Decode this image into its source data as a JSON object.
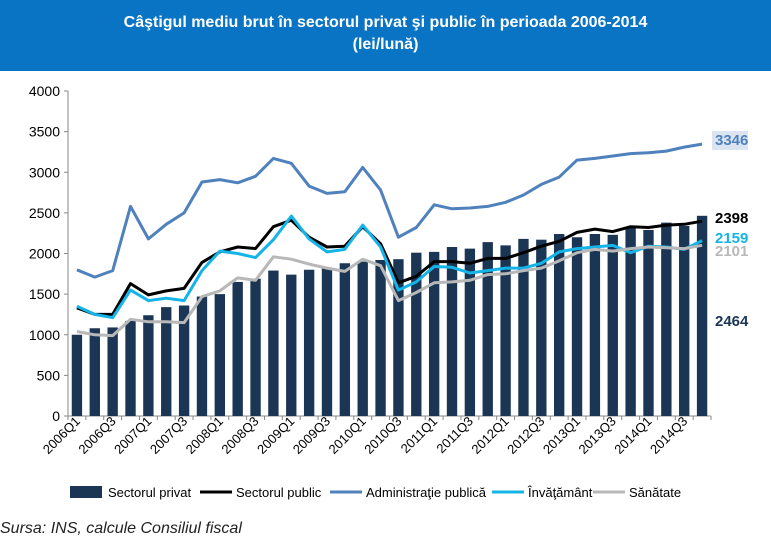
{
  "title_line1": "Câştigul mediu brut în sectorul privat şi public în perioada 2006-2014",
  "title_line2": "(lei/lună)",
  "source": "Sursa: INS, calcule Consiliul fiscal",
  "colors": {
    "header_bg": "#0a74c4",
    "sectorul_privat": "#1b3555",
    "sectorul_public": "#000000",
    "administratie_publica": "#4f81bd",
    "invatamant": "#14b4e8",
    "sanatate": "#b8b8b8"
  },
  "chart_data": {
    "type": "bar",
    "ylim": [
      0,
      4000
    ],
    "yticks": [
      "0",
      "500",
      "1000",
      "1500",
      "2000",
      "2500",
      "3000",
      "3500",
      "4000"
    ],
    "grid": false,
    "legend_position": "bottom",
    "categories": [
      "2006Q1",
      "2006Q2",
      "2006Q3",
      "2006Q4",
      "2007Q1",
      "2007Q2",
      "2007Q3",
      "2007Q4",
      "2008Q1",
      "2008Q2",
      "2008Q3",
      "2008Q4",
      "2009Q1",
      "2009Q2",
      "2009Q3",
      "2009Q4",
      "2010Q1",
      "2010Q2",
      "2010Q3",
      "2010Q4",
      "2011Q1",
      "2011Q2",
      "2011Q3",
      "2011Q4",
      "2012Q1",
      "2012Q2",
      "2012Q3",
      "2012Q4",
      "2013Q1",
      "2013Q2",
      "2013Q3",
      "2013Q4",
      "2014Q1",
      "2014Q2",
      "2014Q3",
      "2014Q4"
    ],
    "xtick_labels": [
      "2006Q1",
      "",
      "2006Q3",
      "",
      "2007Q1",
      "",
      "2007Q3",
      "",
      "2008Q1",
      "",
      "2008Q3",
      "",
      "2009Q1",
      "",
      "2009Q3",
      "",
      "2010Q1",
      "",
      "2010Q3",
      "",
      "2011Q1",
      "",
      "2011Q3",
      "",
      "2012Q1",
      "",
      "2012Q3",
      "",
      "2013Q1",
      "",
      "2013Q3",
      "",
      "2014Q1",
      "",
      "2014Q3",
      ""
    ],
    "series": [
      {
        "name": "Sectorul privat",
        "type": "bar",
        "color": "#1b3555",
        "values": [
          1000,
          1080,
          1090,
          1170,
          1240,
          1340,
          1360,
          1470,
          1500,
          1650,
          1690,
          1790,
          1740,
          1800,
          1820,
          1880,
          1900,
          1920,
          1930,
          2010,
          2020,
          2080,
          2060,
          2140,
          2100,
          2180,
          2170,
          2240,
          2200,
          2240,
          2230,
          2320,
          2290,
          2380,
          2340,
          2464
        ]
      },
      {
        "name": "Sectorul public",
        "type": "line",
        "color": "#000000",
        "values": [
          1330,
          1250,
          1250,
          1630,
          1490,
          1540,
          1570,
          1890,
          2020,
          2080,
          2060,
          2330,
          2410,
          2200,
          2080,
          2090,
          2330,
          2120,
          1640,
          1720,
          1900,
          1900,
          1880,
          1940,
          1940,
          2010,
          2090,
          2150,
          2260,
          2300,
          2270,
          2330,
          2320,
          2350,
          2360,
          2398
        ]
      },
      {
        "name": "Administraţie publică",
        "type": "line",
        "color": "#4f81bd",
        "values": [
          1800,
          1710,
          1790,
          2580,
          2180,
          2360,
          2500,
          2880,
          2910,
          2870,
          2950,
          3170,
          3110,
          2830,
          2740,
          2760,
          3060,
          2780,
          2200,
          2320,
          2600,
          2550,
          2560,
          2580,
          2630,
          2720,
          2850,
          2940,
          3150,
          3170,
          3200,
          3230,
          3240,
          3260,
          3310,
          3346
        ]
      },
      {
        "name": "Învăţământ",
        "type": "line",
        "color": "#14b4e8",
        "values": [
          1350,
          1250,
          1210,
          1550,
          1420,
          1450,
          1420,
          1790,
          2030,
          2000,
          1950,
          2170,
          2460,
          2180,
          2020,
          2050,
          2350,
          2080,
          1550,
          1650,
          1840,
          1830,
          1760,
          1790,
          1820,
          1820,
          1880,
          2020,
          2060,
          2080,
          2100,
          2010,
          2090,
          2080,
          2050,
          2159
        ]
      },
      {
        "name": "Sănătate",
        "type": "line",
        "color": "#b8b8b8",
        "values": [
          1040,
          1000,
          990,
          1190,
          1160,
          1160,
          1150,
          1470,
          1540,
          1700,
          1670,
          1960,
          1930,
          1870,
          1820,
          1780,
          1930,
          1850,
          1420,
          1520,
          1640,
          1650,
          1670,
          1740,
          1750,
          1790,
          1820,
          1910,
          2010,
          2050,
          2030,
          2060,
          2080,
          2070,
          2060,
          2101
        ]
      }
    ],
    "end_labels": [
      {
        "text": "3346",
        "series": "Administraţie publică",
        "color": "#4f81bd",
        "boxed": true
      },
      {
        "text": "2398",
        "series": "Sectorul public",
        "color": "#000000",
        "boxed": false
      },
      {
        "text": "2159",
        "series": "Învăţământ",
        "color": "#14b4e8",
        "boxed": false
      },
      {
        "text": "2101",
        "series": "Sănătate",
        "color": "#b8b8b8",
        "boxed": false
      },
      {
        "text": "2464",
        "series": "Sectorul privat",
        "color": "#1b3555",
        "boxed": false
      }
    ]
  }
}
